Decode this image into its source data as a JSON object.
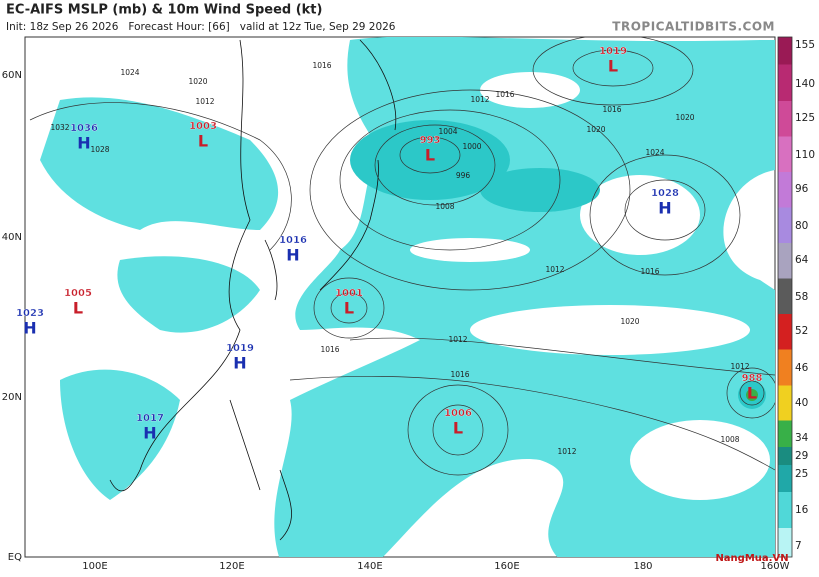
{
  "header": {
    "title": "EC-AIFS MSLP (mb) & 10m Wind Speed (kt)",
    "subtitle": "Init: 18z Sep 26 2026   Forecast Hour: [66]   valid at 12z Tue, Sep 29 2026",
    "site": "TROPICALTIDBITS.COM"
  },
  "axes": {
    "lat_labels": [
      "60N",
      "40N",
      "20N",
      "EQ"
    ],
    "lon_labels": [
      "100E",
      "120E",
      "140E",
      "160E",
      "180",
      "160W"
    ]
  },
  "centers": [
    {
      "type": "H",
      "pressure": 1036
    },
    {
      "type": "L",
      "pressure": 1003
    },
    {
      "type": "L",
      "pressure": 993
    },
    {
      "type": "L",
      "pressure": 1019
    },
    {
      "type": "H",
      "pressure": 1028
    },
    {
      "type": "H",
      "pressure": 1016
    },
    {
      "type": "L",
      "pressure": 1005
    },
    {
      "type": "L",
      "pressure": 1001
    },
    {
      "type": "H",
      "pressure": 1023
    },
    {
      "type": "H",
      "pressure": 1019
    },
    {
      "type": "H",
      "pressure": 1017
    },
    {
      "type": "L",
      "pressure": 1006
    },
    {
      "type": "L",
      "pressure": 988
    }
  ],
  "isobar_labels": [
    1024,
    1020,
    1016,
    1012,
    1028,
    1032,
    1004,
    1008,
    996,
    1000,
    1012,
    1016,
    1020,
    1024,
    1016,
    1020,
    1012,
    1016,
    1012,
    1012,
    1008,
    1012,
    1016,
    1020,
    1016
  ],
  "colorbar": {
    "levels": [
      155,
      140,
      125,
      110,
      96,
      80,
      64,
      58,
      52,
      46,
      40,
      34,
      29,
      25,
      16,
      7
    ],
    "colors": [
      "#9a1a55",
      "#b82a72",
      "#cf4a98",
      "#d870c0",
      "#c27ad8",
      "#a88ae0",
      "#a9a3bf",
      "#5b5b5b",
      "#d42020",
      "#f08020",
      "#f0d020",
      "#38b048",
      "#1a8c80",
      "#20a8a8",
      "#50d8d8",
      "#b8f4f4"
    ]
  },
  "watermark": "NangMua.VN"
}
